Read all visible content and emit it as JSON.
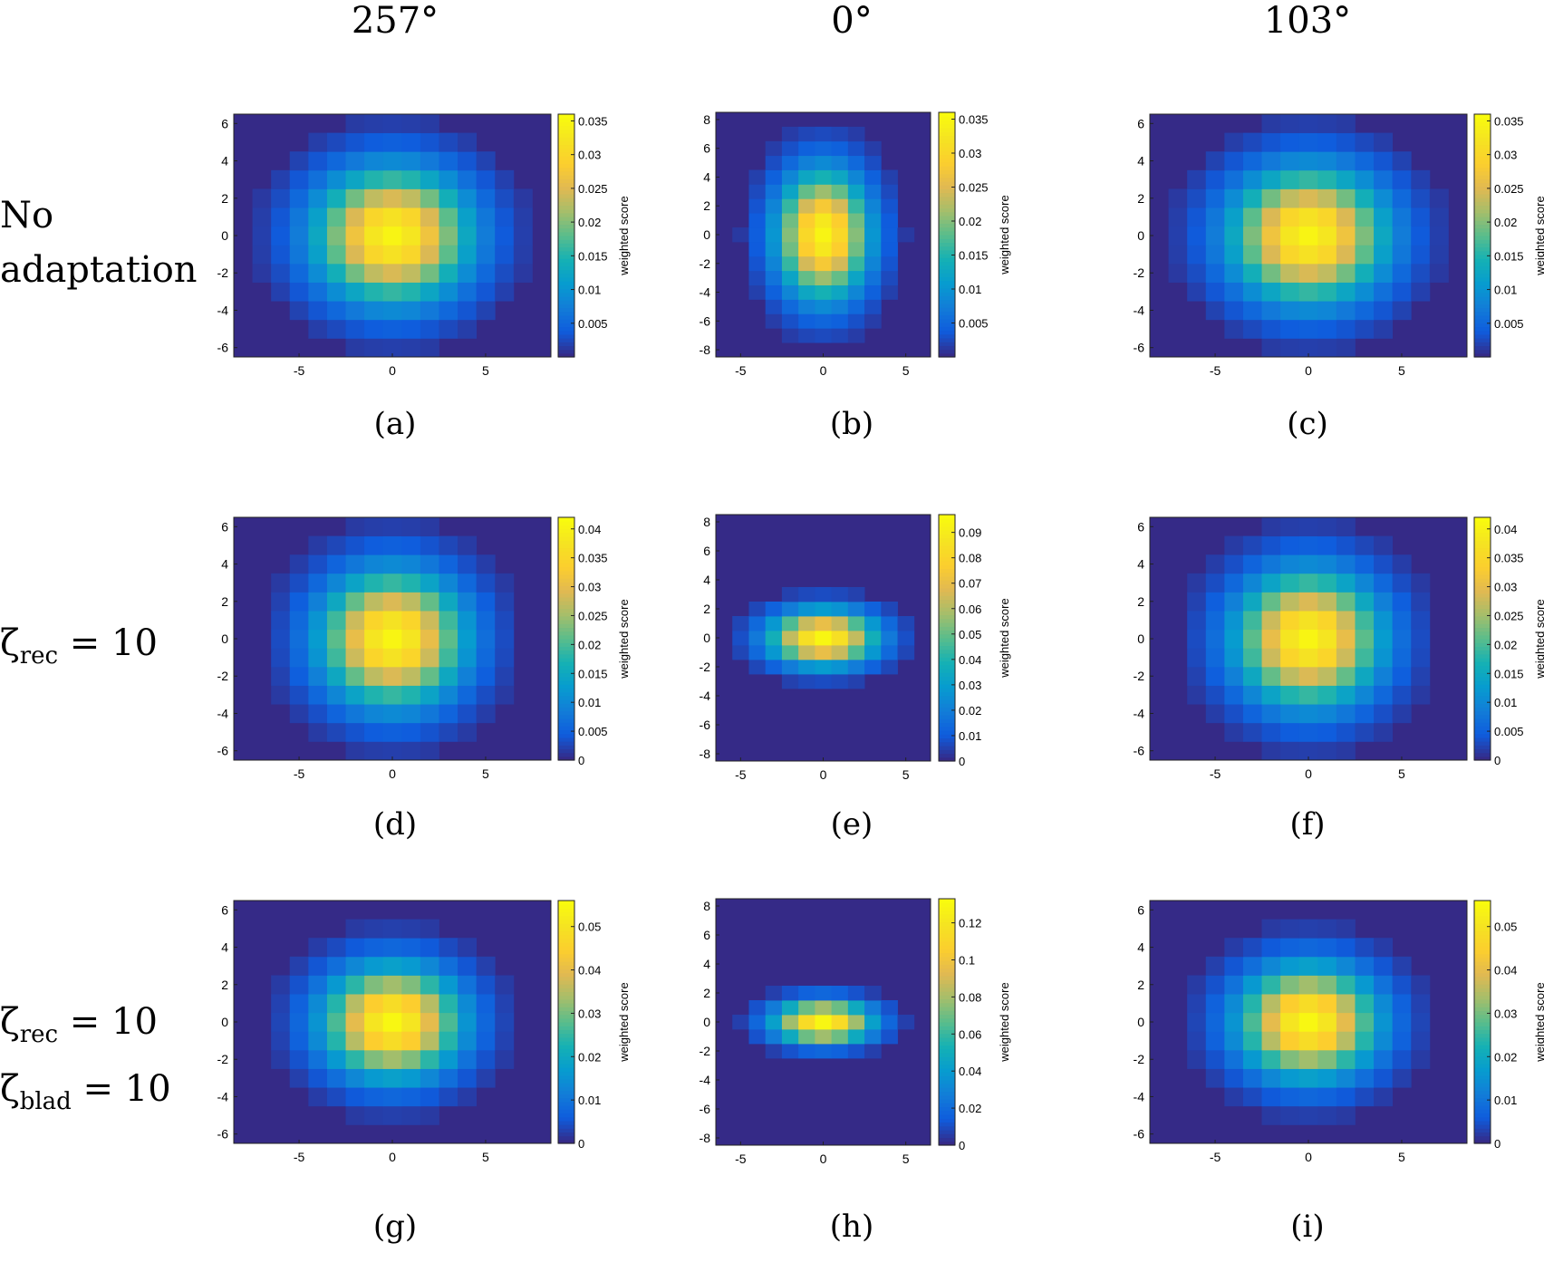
{
  "columns": [
    "257°",
    "0°",
    "103°"
  ],
  "rows": [
    {
      "lines": [
        "No",
        "adaptation"
      ]
    },
    {
      "lines": [
        {
          "sym": "ζ",
          "sub": "rec",
          "rest": " = 10"
        }
      ]
    },
    {
      "lines": [
        {
          "sym": "ζ",
          "sub": "rec",
          "rest": " = 10"
        },
        {
          "sym": "ζ",
          "sub": "blad",
          "rest": " = 10"
        }
      ]
    }
  ],
  "colormap": "parula",
  "colors": {
    "low": "#352a87",
    "high": "#f9fb0e"
  },
  "chart_data": [
    {
      "type": "heatmap",
      "panel": "(a)",
      "xlim": [
        -8.5,
        8.5
      ],
      "ylim": [
        -6.5,
        6.5
      ],
      "xticks": [
        "-5",
        "0",
        "5"
      ],
      "yticks": [
        "6",
        "4",
        "2",
        "0",
        "-2",
        "-4",
        "-6"
      ],
      "sigma_x": 2.8,
      "sigma_y": 2.4,
      "vmax": 0.035,
      "clim": [
        0,
        0.036
      ],
      "colorbar_label": "weighted score",
      "colorbar_ticks": [
        "0.035",
        "0.03",
        "0.025",
        "0.02",
        "0.015",
        "0.01",
        "0.005"
      ]
    },
    {
      "type": "heatmap",
      "panel": "(b)",
      "xlim": [
        -6.5,
        6.5
      ],
      "ylim": [
        -8.5,
        8.5
      ],
      "xticks": [
        "-5",
        "0",
        "5"
      ],
      "yticks": [
        "8",
        "6",
        "4",
        "2",
        "0",
        "-2",
        "-4",
        "-6",
        "-8"
      ],
      "sigma_x": 1.9,
      "sigma_y": 3.0,
      "vmax": 0.035,
      "clim": [
        0,
        0.036
      ],
      "colorbar_label": "weighted score",
      "colorbar_ticks": [
        "0.035",
        "0.03",
        "0.025",
        "0.02",
        "0.015",
        "0.01",
        "0.005"
      ]
    },
    {
      "type": "heatmap",
      "panel": "(c)",
      "xlim": [
        -8.5,
        8.5
      ],
      "ylim": [
        -6.5,
        6.5
      ],
      "xticks": [
        "-5",
        "0",
        "5"
      ],
      "yticks": [
        "6",
        "4",
        "2",
        "0",
        "-2",
        "-4",
        "-6"
      ],
      "sigma_x": 2.8,
      "sigma_y": 2.4,
      "vmax": 0.035,
      "clim": [
        0,
        0.036
      ],
      "colorbar_label": "weighted score",
      "colorbar_ticks": [
        "0.035",
        "0.03",
        "0.025",
        "0.02",
        "0.015",
        "0.01",
        "0.005"
      ]
    },
    {
      "type": "heatmap",
      "panel": "(d)",
      "xlim": [
        -8.5,
        8.5
      ],
      "ylim": [
        -6.5,
        6.5
      ],
      "xticks": [
        "-5",
        "0",
        "5"
      ],
      "yticks": [
        "6",
        "4",
        "2",
        "0",
        "-2",
        "-4",
        "-6"
      ],
      "sigma_x": 2.6,
      "sigma_y": 2.4,
      "vmax": 0.041,
      "clim": [
        0,
        0.042
      ],
      "colorbar_label": "weighted score",
      "colorbar_ticks": [
        "0.04",
        "0.035",
        "0.03",
        "0.025",
        "0.02",
        "0.015",
        "0.01",
        "0.005",
        "0"
      ]
    },
    {
      "type": "heatmap",
      "panel": "(e)",
      "xlim": [
        -6.5,
        6.5
      ],
      "ylim": [
        -8.5,
        8.5
      ],
      "xticks": [
        "-5",
        "0",
        "5"
      ],
      "yticks": [
        "8",
        "6",
        "4",
        "2",
        "0",
        "-2",
        "-4",
        "-6",
        "-8"
      ],
      "sigma_x": 2.2,
      "sigma_y": 1.3,
      "vmax": 0.095,
      "clim": [
        0,
        0.097
      ],
      "colorbar_label": "weighted score",
      "colorbar_ticks": [
        "0.09",
        "0.08",
        "0.07",
        "0.06",
        "0.05",
        "0.04",
        "0.03",
        "0.02",
        "0.01",
        "0"
      ]
    },
    {
      "type": "heatmap",
      "panel": "(f)",
      "xlim": [
        -8.5,
        8.5
      ],
      "ylim": [
        -6.5,
        6.5
      ],
      "xticks": [
        "-5",
        "0",
        "5"
      ],
      "yticks": [
        "6",
        "4",
        "2",
        "0",
        "-2",
        "-4",
        "-6"
      ],
      "sigma_x": 2.6,
      "sigma_y": 2.4,
      "vmax": 0.041,
      "clim": [
        0,
        0.042
      ],
      "colorbar_label": "weighted score",
      "colorbar_ticks": [
        "0.04",
        "0.035",
        "0.03",
        "0.025",
        "0.02",
        "0.015",
        "0.01",
        "0.005",
        "0"
      ]
    },
    {
      "type": "heatmap",
      "panel": "(g)",
      "xlim": [
        -8.5,
        8.5
      ],
      "ylim": [
        -6.5,
        6.5
      ],
      "xticks": [
        "-5",
        "0",
        "5"
      ],
      "yticks": [
        "6",
        "4",
        "2",
        "0",
        "-2",
        "-4",
        "-6"
      ],
      "sigma_x": 2.5,
      "sigma_y": 2.0,
      "vmax": 0.055,
      "clim": [
        0,
        0.056
      ],
      "colorbar_label": "weighted score",
      "colorbar_ticks": [
        "0.05",
        "0.04",
        "0.03",
        "0.02",
        "0.01",
        "0"
      ]
    },
    {
      "type": "heatmap",
      "panel": "(h)",
      "xlim": [
        -6.5,
        6.5
      ],
      "ylim": [
        -8.5,
        8.5
      ],
      "xticks": [
        "-5",
        "0",
        "5"
      ],
      "yticks": [
        "8",
        "6",
        "4",
        "2",
        "0",
        "-2",
        "-4",
        "-6",
        "-8"
      ],
      "sigma_x": 2.0,
      "sigma_y": 1.0,
      "vmax": 0.13,
      "clim": [
        0,
        0.133
      ],
      "colorbar_label": "weighted score",
      "colorbar_ticks": [
        "0.12",
        "0.1",
        "0.08",
        "0.06",
        "0.04",
        "0.02",
        "0"
      ]
    },
    {
      "type": "heatmap",
      "panel": "(i)",
      "xlim": [
        -8.5,
        8.5
      ],
      "ylim": [
        -6.5,
        6.5
      ],
      "xticks": [
        "-5",
        "0",
        "5"
      ],
      "yticks": [
        "6",
        "4",
        "2",
        "0",
        "-2",
        "-4",
        "-6"
      ],
      "sigma_x": 2.5,
      "sigma_y": 2.0,
      "vmax": 0.055,
      "clim": [
        0,
        0.056
      ],
      "colorbar_label": "weighted score",
      "colorbar_ticks": [
        "0.05",
        "0.04",
        "0.03",
        "0.02",
        "0.01",
        "0"
      ]
    }
  ]
}
